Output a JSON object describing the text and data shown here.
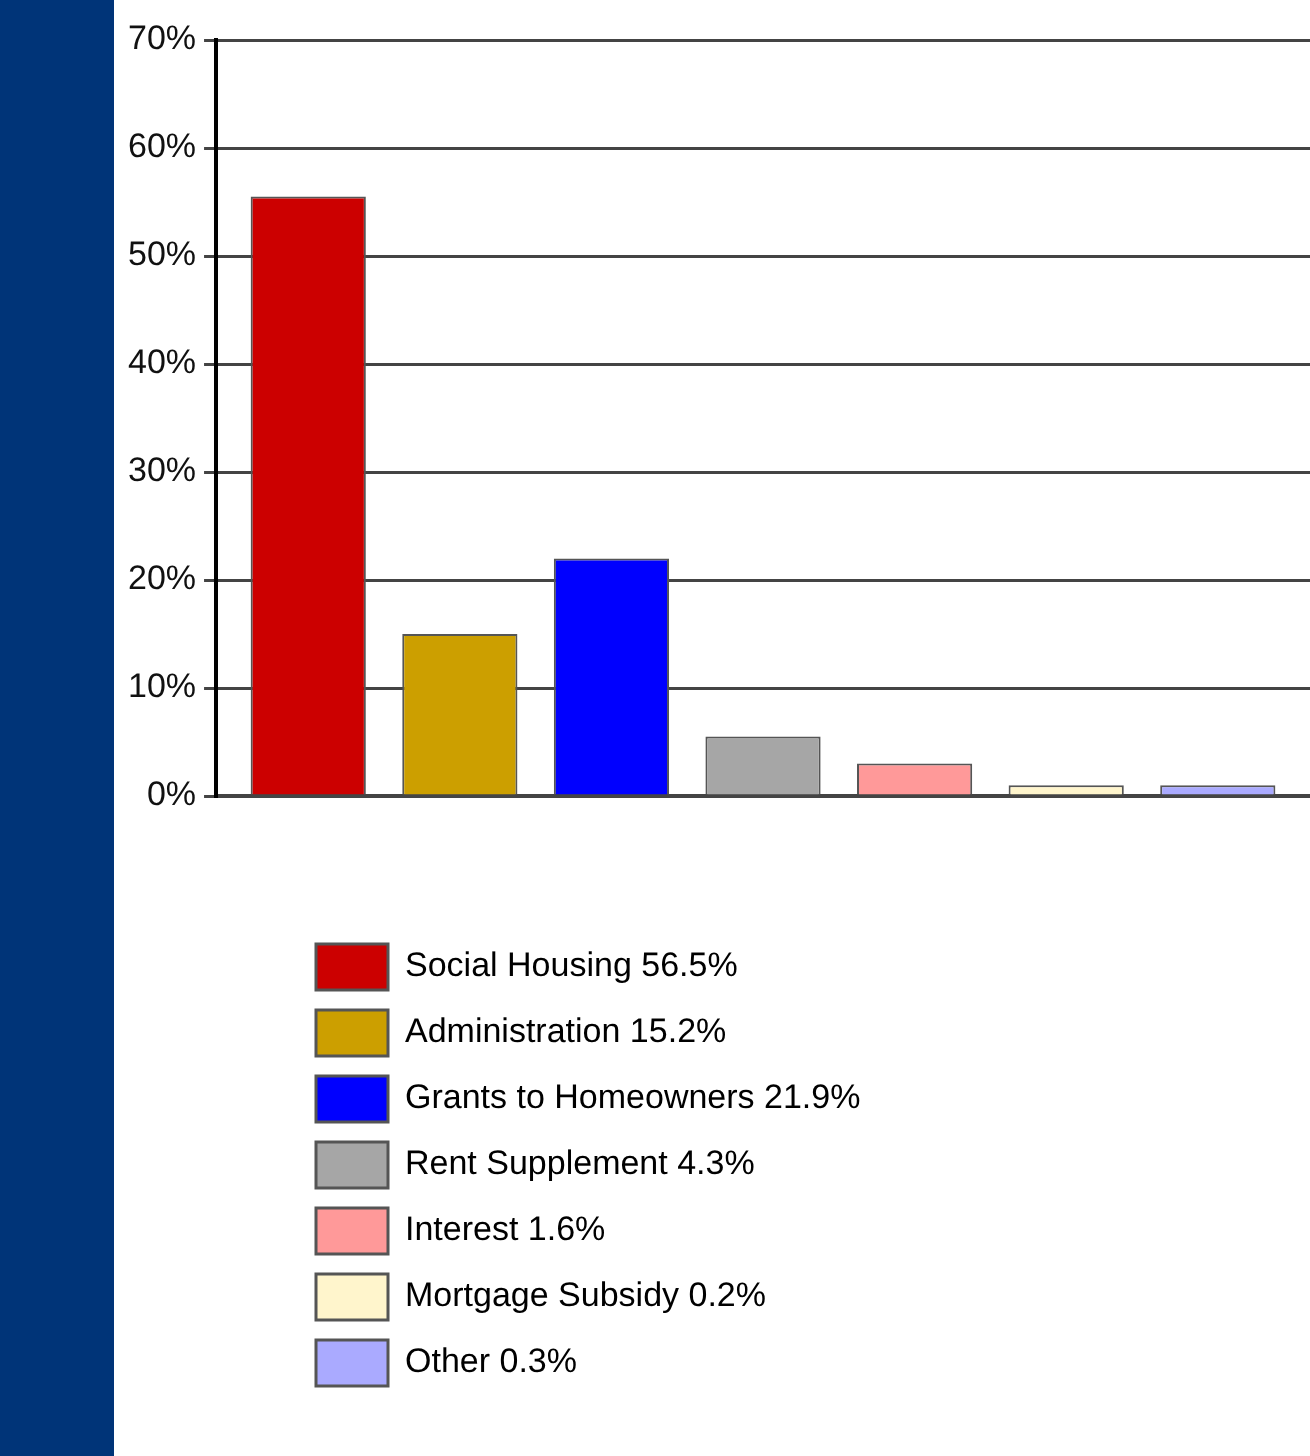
{
  "chart_data": {
    "type": "bar",
    "categories": [
      null
    ],
    "series": [
      {
        "name": "Social Housing 56.5%",
        "color": "#cc0000",
        "values": [
          55.5
        ]
      },
      {
        "name": "Administration 15.2%",
        "color": "#cc9f00",
        "values": [
          15
        ]
      },
      {
        "name": "Grants to Homeowners 21.9%",
        "color": "#0000ff",
        "values": [
          22
        ]
      },
      {
        "name": "Rent Supplement 4.3%",
        "color": "#a6a6a6",
        "values": [
          5.5
        ]
      },
      {
        "name": "Interest 1.6%",
        "color": "#ff9999",
        "values": [
          3
        ]
      },
      {
        "name": "Mortgage Subsidy 0.2%",
        "color": "#fff5cc",
        "values": [
          1
        ]
      },
      {
        "name": "Other 0.3%",
        "color": "#aaaaff",
        "values": [
          1
        ]
      }
    ],
    "ylim": [
      0,
      70
    ],
    "yticks": [
      {
        "value": 0,
        "label": "0%"
      },
      {
        "value": 10,
        "label": "10%"
      },
      {
        "value": 20,
        "label": "20%"
      },
      {
        "value": 30,
        "label": "30%"
      },
      {
        "value": 40,
        "label": "40%"
      },
      {
        "value": 50,
        "label": "50%"
      },
      {
        "value": 60,
        "label": "60%"
      },
      {
        "value": 70,
        "label": "70%"
      }
    ],
    "grid": "y",
    "legend": "bottom",
    "tick_labels": "y"
  }
}
